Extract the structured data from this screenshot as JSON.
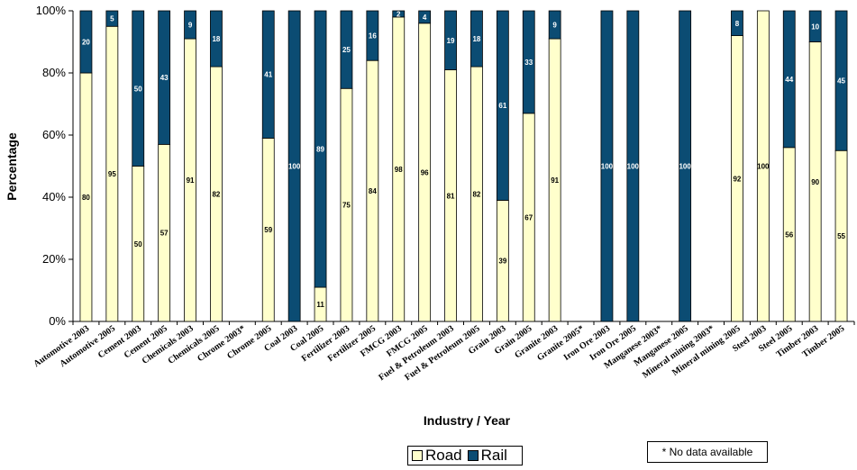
{
  "chart_data": {
    "type": "bar",
    "stacked": true,
    "percent": true,
    "xlabel": "Industry / Year",
    "ylabel": "Percentage",
    "ylim": [
      0,
      100
    ],
    "yticks": [
      "0%",
      "20%",
      "40%",
      "60%",
      "80%",
      "100%"
    ],
    "grid": false,
    "legend_position": "bottom",
    "categories": [
      "Automotive 2003",
      "Automotive 2005",
      "Cement 2003",
      "Cement 2005",
      "Chemicals 2003",
      "Chemicals 2005",
      "Chrome 2003*",
      "Chrome 2005",
      "Coal 2003",
      "Coal 2005",
      "Fertilizer 2003",
      "Fertilizer 2005",
      "FMCG 2003",
      "FMCG 2005",
      "Fuel & Petroleum 2003",
      "Fuel & Petroleum 2005",
      "Grain 2003",
      "Grain 2005",
      "Granite 2003",
      "Granite 2005*",
      "Iron Ore 2003",
      "Iron Ore 2005",
      "Manganese 2003*",
      "Manganese 2005",
      "Mineral mining 2003*",
      "Mineral mining 2005",
      "Steel 2003",
      "Steel 2005",
      "Timber 2003",
      "Timber 2005"
    ],
    "series": [
      {
        "name": "Road",
        "color": "#ffffcc",
        "values": [
          80,
          95,
          50,
          57,
          91,
          82,
          null,
          59,
          0,
          11,
          75,
          84,
          98,
          96,
          81,
          82,
          39,
          67,
          91,
          null,
          0,
          0,
          null,
          0,
          null,
          92,
          100,
          56,
          90,
          55
        ]
      },
      {
        "name": "Rail",
        "color": "#0b4c73",
        "values": [
          20,
          5,
          50,
          43,
          9,
          18,
          null,
          41,
          100,
          89,
          25,
          16,
          2,
          4,
          19,
          18,
          61,
          33,
          9,
          null,
          100,
          100,
          null,
          100,
          null,
          8,
          0,
          44,
          10,
          45
        ]
      }
    ]
  },
  "note": "* No data available"
}
